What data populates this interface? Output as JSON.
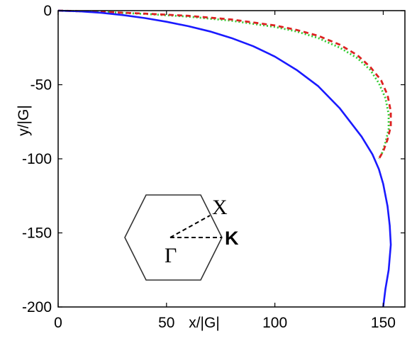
{
  "chart_data": {
    "type": "line",
    "xlabel": "x/|G|",
    "ylabel": "y/|G|",
    "xlim": [
      0,
      160
    ],
    "ylim": [
      -200,
      0
    ],
    "x_ticks": [
      "0",
      "50",
      "100",
      "150"
    ],
    "x_tick_values": [
      0,
      50,
      100,
      150
    ],
    "y_ticks": [
      "0",
      "-50",
      "-100",
      "-150",
      "-200"
    ],
    "y_tick_values": [
      0,
      -50,
      -100,
      -150,
      -200
    ],
    "grid": false,
    "series": [
      {
        "color": "#1a1aff",
        "style": "solid",
        "points": [
          [
            0,
            0
          ],
          [
            10,
            -0.5
          ],
          [
            20,
            -1.5
          ],
          [
            30,
            -3
          ],
          [
            40,
            -5
          ],
          [
            50,
            -7.5
          ],
          [
            60,
            -10.5
          ],
          [
            70,
            -14
          ],
          [
            80,
            -18.5
          ],
          [
            90,
            -24
          ],
          [
            100,
            -31
          ],
          [
            110,
            -40
          ],
          [
            120,
            -51
          ],
          [
            130,
            -66
          ],
          [
            140,
            -85
          ],
          [
            145,
            -97
          ],
          [
            148,
            -107
          ],
          [
            150,
            -117
          ],
          [
            152,
            -132
          ],
          [
            153,
            -145
          ],
          [
            153.5,
            -158
          ],
          [
            152.5,
            -175
          ],
          [
            151,
            -188
          ],
          [
            150,
            -200
          ]
        ]
      },
      {
        "color": "#dd2222",
        "style": "dashed",
        "points": [
          [
            0,
            0
          ],
          [
            20,
            -0.8
          ],
          [
            40,
            -2
          ],
          [
            60,
            -3.5
          ],
          [
            80,
            -6
          ],
          [
            100,
            -10
          ],
          [
            110,
            -13
          ],
          [
            120,
            -17
          ],
          [
            130,
            -23
          ],
          [
            138,
            -30
          ],
          [
            144,
            -38
          ],
          [
            149,
            -47
          ],
          [
            152,
            -57
          ],
          [
            153.5,
            -68
          ],
          [
            153.5,
            -78
          ],
          [
            152,
            -87
          ],
          [
            150,
            -95
          ],
          [
            148,
            -100
          ]
        ]
      },
      {
        "color": "#33cc33",
        "style": "dotted",
        "points": [
          [
            0,
            0
          ],
          [
            20,
            -0.9
          ],
          [
            40,
            -2.2
          ],
          [
            60,
            -4
          ],
          [
            80,
            -6.8
          ],
          [
            100,
            -11
          ],
          [
            110,
            -14
          ],
          [
            120,
            -18.5
          ],
          [
            130,
            -25
          ],
          [
            138,
            -32
          ],
          [
            144,
            -40
          ],
          [
            148,
            -49
          ],
          [
            151,
            -59
          ],
          [
            152.5,
            -70
          ],
          [
            152.5,
            -80
          ],
          [
            151,
            -89
          ],
          [
            149.5,
            -96
          ],
          [
            148,
            -100
          ]
        ]
      }
    ],
    "inset": {
      "labels": {
        "x_point": "X",
        "k_point": "K",
        "gamma_point": "Γ"
      }
    }
  }
}
